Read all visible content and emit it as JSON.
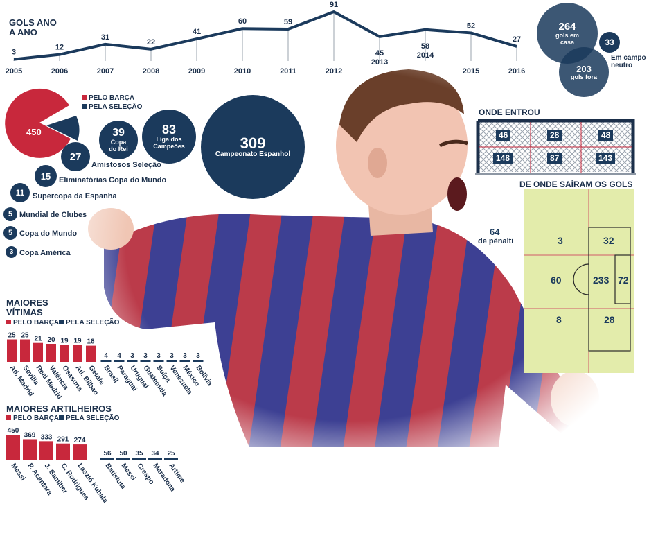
{
  "line_chart": {
    "title": "GOLS ANO A ANO",
    "title_line1": "GOLS ANO",
    "title_line2": "A ANO"
  },
  "venue": {
    "home": {
      "value": "264",
      "label1": "gols em",
      "label2": "casa"
    },
    "neutral": {
      "value": "33",
      "label1": "Em campo",
      "label2": "neutro"
    },
    "away": {
      "value": "203",
      "label": "gols fora"
    }
  },
  "team_pie": {
    "barca_value": "450",
    "selecao_value": "50",
    "legend_barca": "PELO BARÇA",
    "legend_selecao": "PELA SELEÇÃO"
  },
  "competitions": [
    {
      "value": "39",
      "label1": "Copa",
      "label2": "do Rei"
    },
    {
      "value": "83",
      "label1": "Liga dos",
      "label2": "Campeões"
    },
    {
      "value": "309",
      "label1": "Campeonato Espanhol",
      "label2": ""
    },
    {
      "value": "27",
      "label1": "Amistosos Seleção",
      "label2": ""
    },
    {
      "value": "15",
      "label1": "Eliminatórias Copa do Mundo",
      "label2": ""
    },
    {
      "value": "11",
      "label1": "Supercopa da Espanha",
      "label2": ""
    },
    {
      "value": "5",
      "label1": "Mundial de Clubes",
      "label2": ""
    },
    {
      "value": "5",
      "label1": "Copa do Mundo",
      "label2": ""
    },
    {
      "value": "3",
      "label1": "Copa América",
      "label2": ""
    }
  ],
  "goal": {
    "title": "ONDE ENTROU",
    "top": [
      "46",
      "28",
      "48"
    ],
    "bottom": [
      "148",
      "87",
      "143"
    ]
  },
  "pitch": {
    "title": "DE ONDE SAÍRAM OS GOLS",
    "penalty_value": "64",
    "penalty_label": "de pênalti",
    "zones": {
      "top_outside": "3",
      "top_box": "32",
      "mid_outside": "60",
      "mid_box": "233",
      "mid_small": "72",
      "bot_outside": "8",
      "bot_box": "28"
    }
  },
  "victims": {
    "title_line1": "MAIORES",
    "title_line2": "VÍTIMAS",
    "legend_barca": "PELO BARÇA",
    "legend_selecao": "PELA SELEÇÃO"
  },
  "scorers": {
    "title": "MAIORES ARTILHEIROS",
    "legend_barca": "PELO BARÇA",
    "legend_selecao": "PELA SELEÇÃO"
  },
  "colors": {
    "navy": "#1b3a5c",
    "red": "#c8283c",
    "pitch": "#e3ecab"
  },
  "chart_data": [
    {
      "type": "line",
      "title": "GOLS ANO A ANO",
      "x": [
        "2005",
        "2006",
        "2007",
        "2008",
        "2009",
        "2010",
        "2011",
        "2012",
        "2013",
        "2014",
        "2015",
        "2016"
      ],
      "values": [
        3,
        12,
        31,
        22,
        41,
        60,
        59,
        91,
        45,
        58,
        52,
        27
      ]
    },
    {
      "type": "bar",
      "title": "MAIORES VÍTIMAS",
      "series": [
        {
          "name": "PELO BARÇA",
          "categories": [
            "Atl. Madrid",
            "Sevilla",
            "Real Madrid",
            "Valência",
            "Osasuna",
            "Atl. Bilbao",
            "Getafe"
          ],
          "values": [
            25,
            25,
            21,
            20,
            19,
            19,
            18
          ]
        },
        {
          "name": "PELA SELEÇÃO",
          "categories": [
            "Brasil",
            "Paraguai",
            "Uruguai",
            "Guatemala",
            "Suíça",
            "Venezuela",
            "México",
            "Bolívia"
          ],
          "values": [
            4,
            4,
            3,
            3,
            3,
            3,
            3,
            3
          ]
        }
      ]
    },
    {
      "type": "bar",
      "title": "MAIORES ARTILHEIROS",
      "series": [
        {
          "name": "PELO BARÇA",
          "categories": [
            "Messi",
            "P. Acantara",
            "J. Samitier",
            "C. Rodrigues",
            "Laszló Kubala"
          ],
          "values": [
            450,
            369,
            333,
            291,
            274
          ]
        },
        {
          "name": "PELA SELEÇÃO",
          "categories": [
            "Batistuta",
            "Messi",
            "Crespo",
            "Maradona",
            "Artime"
          ],
          "values": [
            56,
            50,
            35,
            34,
            25
          ]
        }
      ]
    }
  ]
}
